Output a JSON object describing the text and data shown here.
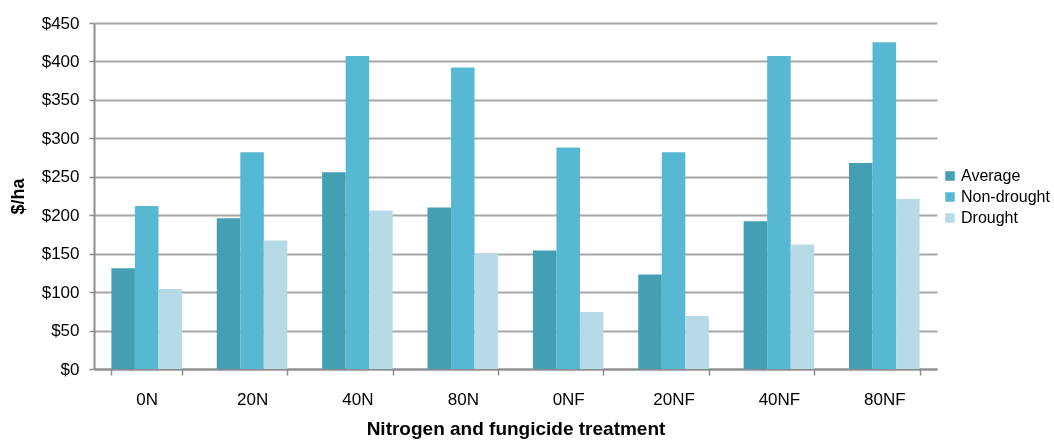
{
  "chart_data": {
    "type": "bar",
    "xlabel": "Nitrogen  and fungicide treatment",
    "ylabel": "$/ha",
    "categories": [
      "0N",
      "20N",
      "40N",
      "80N",
      "0NF",
      "20NF",
      "40NF",
      "80NF"
    ],
    "series": [
      {
        "name": "Average",
        "color": "#459fb3",
        "values": [
          131,
          196,
          256,
          210,
          154,
          123,
          192,
          268
        ]
      },
      {
        "name": "Non-drought",
        "color": "#57b8d3",
        "values": [
          212,
          282,
          407,
          392,
          288,
          282,
          407,
          425
        ]
      },
      {
        "name": "Drought",
        "color": "#b7dbe6",
        "values": [
          104,
          167,
          206,
          150,
          74,
          69,
          162,
          221
        ]
      }
    ],
    "ylim": [
      0,
      450
    ],
    "yticks": [
      {
        "value": 0,
        "label": "$0"
      },
      {
        "value": 50,
        "label": "$50"
      },
      {
        "value": 100,
        "label": "$100"
      },
      {
        "value": 150,
        "label": "$150"
      },
      {
        "value": 200,
        "label": "$200"
      },
      {
        "value": 250,
        "label": "$250"
      },
      {
        "value": 300,
        "label": "$300"
      },
      {
        "value": 350,
        "label": "$350"
      },
      {
        "value": 400,
        "label": "$400"
      },
      {
        "value": 450,
        "label": "$450"
      }
    ],
    "grid": "y",
    "legend": "right"
  }
}
